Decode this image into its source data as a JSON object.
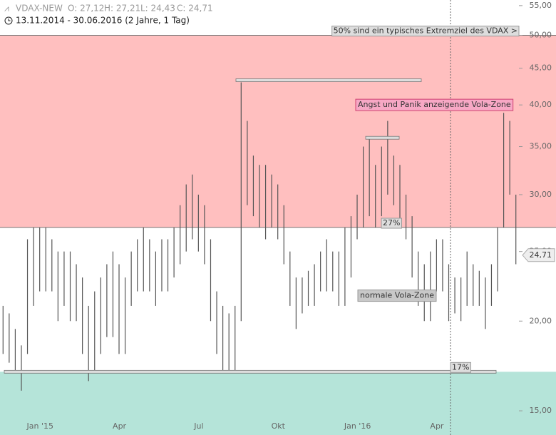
{
  "chart_data": {
    "type": "hlbar",
    "title": "13.11.2014 - 30.06.2016 (2 Jahre, 1 Tag)",
    "quote": {
      "open": {
        "value": 27.12,
        "label": "O: 27,12"
      },
      "high": {
        "value": 27.21,
        "label": "H: 27,21"
      },
      "low": {
        "value": 24.43,
        "label": "L: 24,43"
      },
      "close": {
        "value": 24.71,
        "label": "C: 24,71"
      }
    },
    "last_price": {
      "value": 24.71,
      "label": "24,71"
    },
    "categories": [
      null,
      null,
      null,
      null,
      null,
      null,
      null,
      "Jan '15",
      null,
      null,
      null,
      null,
      null,
      null,
      null,
      null,
      null,
      null,
      null,
      null,
      "Apr",
      null,
      null,
      null,
      null,
      null,
      null,
      null,
      null,
      null,
      null,
      null,
      null,
      "Jul",
      null,
      null,
      null,
      null,
      null,
      null,
      null,
      null,
      null,
      null,
      null,
      null,
      "Okt",
      null,
      null,
      null,
      null,
      null,
      null,
      null,
      null,
      null,
      null,
      null,
      null,
      "Jan '16",
      null,
      null,
      null,
      null,
      null,
      null,
      null,
      null,
      null,
      null,
      null,
      null,
      "Apr",
      null,
      null,
      null,
      null,
      null,
      null,
      null,
      null,
      null,
      null,
      null,
      null
    ],
    "series": [
      {
        "name": "VDAX-NEW",
        "color": "#555555",
        "high": [
          21,
          20.5,
          19.5,
          18.5,
          26,
          27,
          27,
          27,
          26,
          25,
          25,
          25,
          24,
          23,
          21,
          22,
          23,
          24,
          25,
          24,
          23,
          25,
          26,
          27,
          26,
          25,
          26,
          26,
          27,
          29,
          31,
          32,
          30,
          29,
          26,
          22,
          21,
          20.5,
          21,
          43,
          38,
          34,
          33,
          33,
          32,
          31,
          29,
          25,
          23,
          23,
          23.5,
          24,
          25,
          26,
          25,
          25,
          27,
          28,
          30,
          35,
          36,
          33,
          35,
          38,
          34,
          33,
          30,
          28,
          25,
          24,
          25,
          26,
          26,
          24,
          23,
          23,
          25,
          24,
          23.5,
          23,
          24,
          27,
          39,
          38,
          30
        ],
        "low": [
          18,
          17.5,
          17,
          16,
          18,
          21,
          22,
          22,
          22,
          20,
          21,
          20,
          20,
          18,
          16.5,
          17,
          18,
          19,
          19,
          18,
          18,
          21,
          22,
          22,
          22,
          21,
          22,
          22,
          23,
          24,
          25,
          26,
          25,
          24,
          20,
          18,
          17,
          17,
          17,
          20,
          29,
          28,
          27,
          26,
          27,
          26,
          24,
          21,
          19.5,
          20.5,
          21,
          21,
          22,
          22,
          22,
          21,
          21,
          23,
          26,
          27,
          28,
          27,
          28,
          30,
          29,
          27,
          26,
          23,
          21,
          20,
          20,
          22,
          22,
          20,
          20.5,
          20,
          21,
          21,
          21,
          19.5,
          21,
          22,
          27,
          30,
          24
        ]
      }
    ],
    "ylim": [
      13.88,
      56
    ],
    "log_scale": true,
    "yticks": [
      {
        "value": 15,
        "label": "15,00"
      },
      {
        "value": 20,
        "label": "20,00"
      },
      {
        "value": 25,
        "label": "25,00"
      },
      {
        "value": 30,
        "label": "30,00"
      },
      {
        "value": 35,
        "label": "35,00"
      },
      {
        "value": 40,
        "label": "40,00"
      },
      {
        "value": 45,
        "label": "45,00"
      },
      {
        "value": 50,
        "label": "50,00"
      },
      {
        "value": 55,
        "label": "55,00"
      }
    ],
    "zones": [
      {
        "from": 27,
        "to": 50,
        "color": "#ffbfbf",
        "label": "Angst und Panik anzeigende Vola-Zone",
        "label_value": 40
      },
      {
        "from": 17,
        "to": 27,
        "color": "#ffffff",
        "label": "normale Vola-Zone",
        "label_value": 21.7
      },
      {
        "from": 13.88,
        "to": 17,
        "color": "#b5e4d9"
      }
    ],
    "levels": [
      {
        "value": 50,
        "label": "50% sind ein typisches Extremziel des VDAX >"
      },
      {
        "value": 27,
        "label": "27%"
      },
      {
        "value": 17,
        "label": "17%"
      },
      {
        "value": 43.3
      },
      {
        "value": 36
      }
    ]
  }
}
